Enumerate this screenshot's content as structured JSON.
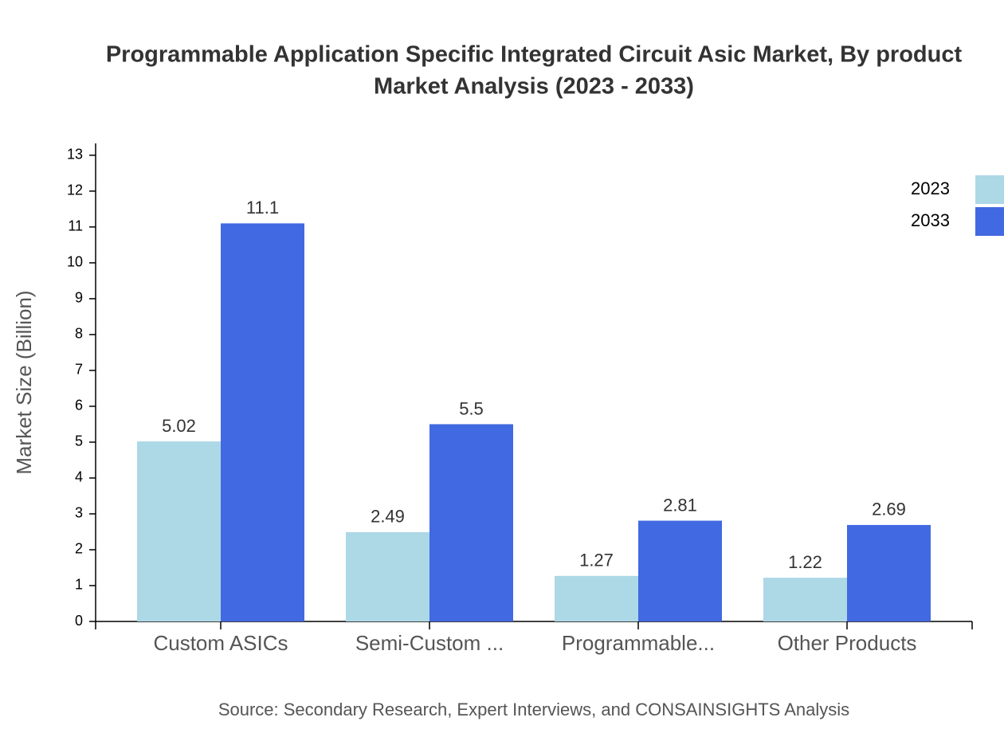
{
  "chart_data": {
    "type": "bar",
    "title_lines": [
      "Programmable Application Specific Integrated Circuit Asic Market, By product",
      "Market Analysis (2023 - 2033)"
    ],
    "y_label": "Market Size (Billion)",
    "source": "Source: Secondary Research, Expert Interviews, and CONSAINSIGHTS Analysis",
    "categories": [
      "Custom ASICs",
      "Semi-Custom ...",
      "Programmable...",
      "Other Products"
    ],
    "series": [
      {
        "name": "2023",
        "color": "#add8e6",
        "values": [
          5.02,
          2.49,
          1.27,
          1.22
        ]
      },
      {
        "name": "2033",
        "color": "#4169e1",
        "values": [
          11.1,
          5.5,
          2.81,
          2.69
        ]
      }
    ],
    "ylim": [
      0,
      13.33
    ],
    "yticks": [
      0,
      1,
      2,
      3,
      4,
      5,
      6,
      7,
      8,
      9,
      10,
      11,
      12,
      13
    ],
    "legend": "top-right"
  }
}
